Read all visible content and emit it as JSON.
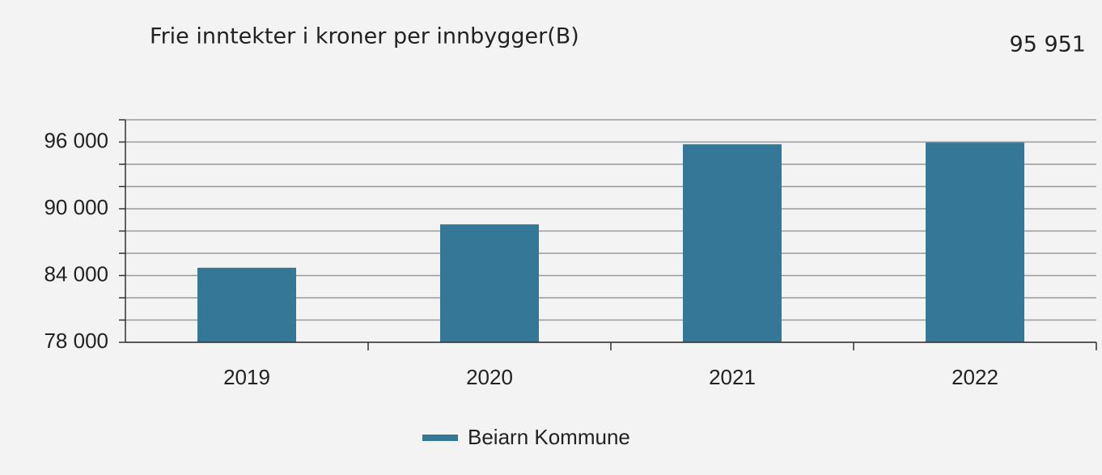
{
  "chart_data": {
    "type": "bar",
    "title": "Frie inntekter i kroner per innbygger(B)",
    "headline": "95 951",
    "categories": [
      "2019",
      "2020",
      "2021",
      "2022"
    ],
    "series": [
      {
        "name": "Beiarn Kommune",
        "color": "#347797",
        "values": [
          84700,
          88600,
          95800,
          95951
        ]
      }
    ],
    "ylim": [
      78000,
      98000
    ],
    "yticks": [
      {
        "value": 78000,
        "label": "78 000"
      },
      {
        "value": 84000,
        "label": "84 000"
      },
      {
        "value": 90000,
        "label": "90 000"
      },
      {
        "value": 96000,
        "label": "96 000"
      }
    ],
    "minor_yticks": [
      80000,
      82000,
      86000,
      88000,
      92000,
      94000,
      98000
    ],
    "grid": true
  }
}
